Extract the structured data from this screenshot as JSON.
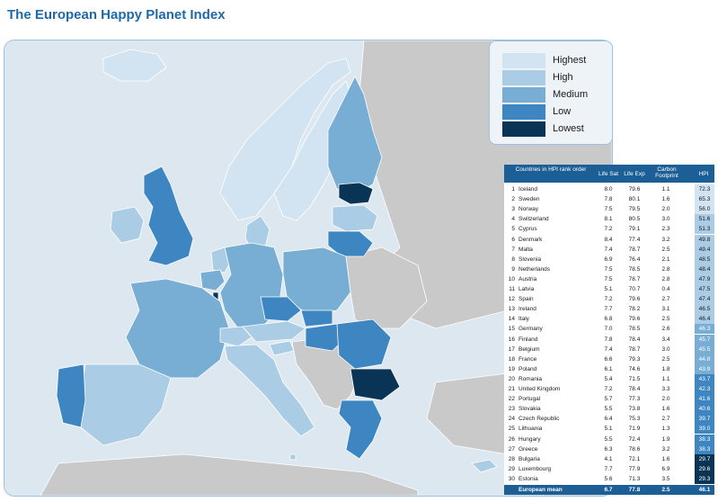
{
  "title": "The European Happy Planet Index",
  "colors": {
    "highest": "#d2e4f1",
    "high": "#aaccE4",
    "medium": "#78aed4",
    "low": "#3d86c2",
    "lowest": "#0a3456",
    "non_eu": "#c9c9c9",
    "sea": "#dde7f0",
    "header": "#1c5e96"
  },
  "legend": [
    {
      "label": "Highest",
      "level": "highest"
    },
    {
      "label": "High",
      "level": "high"
    },
    {
      "label": "Medium",
      "level": "medium"
    },
    {
      "label": "Low",
      "level": "low"
    },
    {
      "label": "Lowest",
      "level": "lowest"
    }
  ],
  "table": {
    "headers": {
      "countries": "Countries in HPI rank order",
      "life_sat": "Life Sat",
      "life_exp": "Life Exp",
      "carbon": "Carbon Footprint",
      "hpi": "HPI"
    },
    "rows": [
      {
        "rank": "1",
        "country": "Iceland",
        "life_sat": "8.0",
        "life_exp": "79.6",
        "carbon": "1.1",
        "hpi": "72.3",
        "level": "highest"
      },
      {
        "rank": "2",
        "country": "Sweden",
        "life_sat": "7.8",
        "life_exp": "80.1",
        "carbon": "1.6",
        "hpi": "65.3",
        "level": "highest"
      },
      {
        "rank": "3",
        "country": "Norway",
        "life_sat": "7.5",
        "life_exp": "79.5",
        "carbon": "2.0",
        "hpi": "56.0",
        "level": "highest"
      },
      {
        "rank": "4",
        "country": "Switzerland",
        "life_sat": "8.1",
        "life_exp": "80.5",
        "carbon": "3.0",
        "hpi": "51.6",
        "level": "high"
      },
      {
        "rank": "5",
        "country": "Cyprus",
        "life_sat": "7.2",
        "life_exp": "79.1",
        "carbon": "2.3",
        "hpi": "51.3",
        "level": "high"
      },
      {
        "rank": "6",
        "country": "Denmark",
        "life_sat": "8.4",
        "life_exp": "77.4",
        "carbon": "3.2",
        "hpi": "49.8",
        "level": "high"
      },
      {
        "rank": "7",
        "country": "Malta",
        "life_sat": "7.4",
        "life_exp": "78.7",
        "carbon": "2.5",
        "hpi": "49.4",
        "level": "high"
      },
      {
        "rank": "8",
        "country": "Slovenia",
        "life_sat": "6.9",
        "life_exp": "76.4",
        "carbon": "2.1",
        "hpi": "48.5",
        "level": "high"
      },
      {
        "rank": "9",
        "country": "Netherlands",
        "life_sat": "7.5",
        "life_exp": "78.5",
        "carbon": "2.8",
        "hpi": "48.4",
        "level": "high"
      },
      {
        "rank": "10",
        "country": "Austria",
        "life_sat": "7.5",
        "life_exp": "78.7",
        "carbon": "2.8",
        "hpi": "47.9",
        "level": "high"
      },
      {
        "rank": "11",
        "country": "Latvia",
        "life_sat": "5.1",
        "life_exp": "70.7",
        "carbon": "0.4",
        "hpi": "47.5",
        "level": "high"
      },
      {
        "rank": "12",
        "country": "Spain",
        "life_sat": "7.2",
        "life_exp": "79.6",
        "carbon": "2.7",
        "hpi": "47.4",
        "level": "high"
      },
      {
        "rank": "13",
        "country": "Ireland",
        "life_sat": "7.7",
        "life_exp": "78.2",
        "carbon": "3.1",
        "hpi": "46.5",
        "level": "high"
      },
      {
        "rank": "14",
        "country": "Italy",
        "life_sat": "6.8",
        "life_exp": "79.6",
        "carbon": "2.5",
        "hpi": "46.4",
        "level": "high"
      },
      {
        "rank": "15",
        "country": "Germany",
        "life_sat": "7.0",
        "life_exp": "78.5",
        "carbon": "2.6",
        "hpi": "46.3",
        "level": "medium"
      },
      {
        "rank": "16",
        "country": "Finland",
        "life_sat": "7.8",
        "life_exp": "78.4",
        "carbon": "3.4",
        "hpi": "45.7",
        "level": "medium"
      },
      {
        "rank": "17",
        "country": "Belgium",
        "life_sat": "7.4",
        "life_exp": "78.7",
        "carbon": "3.0",
        "hpi": "45.5",
        "level": "medium"
      },
      {
        "rank": "18",
        "country": "France",
        "life_sat": "6.6",
        "life_exp": "79.3",
        "carbon": "2.5",
        "hpi": "44.8",
        "level": "medium"
      },
      {
        "rank": "19",
        "country": "Poland",
        "life_sat": "6.1",
        "life_exp": "74.6",
        "carbon": "1.8",
        "hpi": "43.9",
        "level": "medium"
      },
      {
        "rank": "20",
        "country": "Romania",
        "life_sat": "5.4",
        "life_exp": "71.5",
        "carbon": "1.1",
        "hpi": "43.7",
        "level": "low"
      },
      {
        "rank": "21",
        "country": "United Kingdom",
        "life_sat": "7.2",
        "life_exp": "78.4",
        "carbon": "3.3",
        "hpi": "42.3",
        "level": "low"
      },
      {
        "rank": "22",
        "country": "Portugal",
        "life_sat": "5.7",
        "life_exp": "77.3",
        "carbon": "2.0",
        "hpi": "41.6",
        "level": "low"
      },
      {
        "rank": "23",
        "country": "Slovakia",
        "life_sat": "5.5",
        "life_exp": "73.8",
        "carbon": "1.6",
        "hpi": "40.6",
        "level": "low"
      },
      {
        "rank": "24",
        "country": "Czech Republic",
        "life_sat": "6.4",
        "life_exp": "75.3",
        "carbon": "2.7",
        "hpi": "39.7",
        "level": "low"
      },
      {
        "rank": "25",
        "country": "Lithuania",
        "life_sat": "5.1",
        "life_exp": "71.9",
        "carbon": "1.3",
        "hpi": "39.0",
        "level": "low"
      },
      {
        "rank": "26",
        "country": "Hungary",
        "life_sat": "5.5",
        "life_exp": "72.4",
        "carbon": "1.9",
        "hpi": "38.3",
        "level": "low"
      },
      {
        "rank": "27",
        "country": "Greece",
        "life_sat": "6.3",
        "life_exp": "78.6",
        "carbon": "3.2",
        "hpi": "38.3",
        "level": "low"
      },
      {
        "rank": "28",
        "country": "Bulgaria",
        "life_sat": "4.1",
        "life_exp": "72.1",
        "carbon": "1.6",
        "hpi": "29.7",
        "level": "lowest"
      },
      {
        "rank": "29",
        "country": "Luxembourg",
        "life_sat": "7.7",
        "life_exp": "77.9",
        "carbon": "6.9",
        "hpi": "29.6",
        "level": "lowest"
      },
      {
        "rank": "30",
        "country": "Estonia",
        "life_sat": "5.6",
        "life_exp": "71.3",
        "carbon": "3.5",
        "hpi": "29.3",
        "level": "lowest"
      }
    ],
    "footer": {
      "label": "European mean",
      "life_sat": "6.7",
      "life_exp": "77.8",
      "carbon": "2.5",
      "hpi": "46.1"
    }
  }
}
